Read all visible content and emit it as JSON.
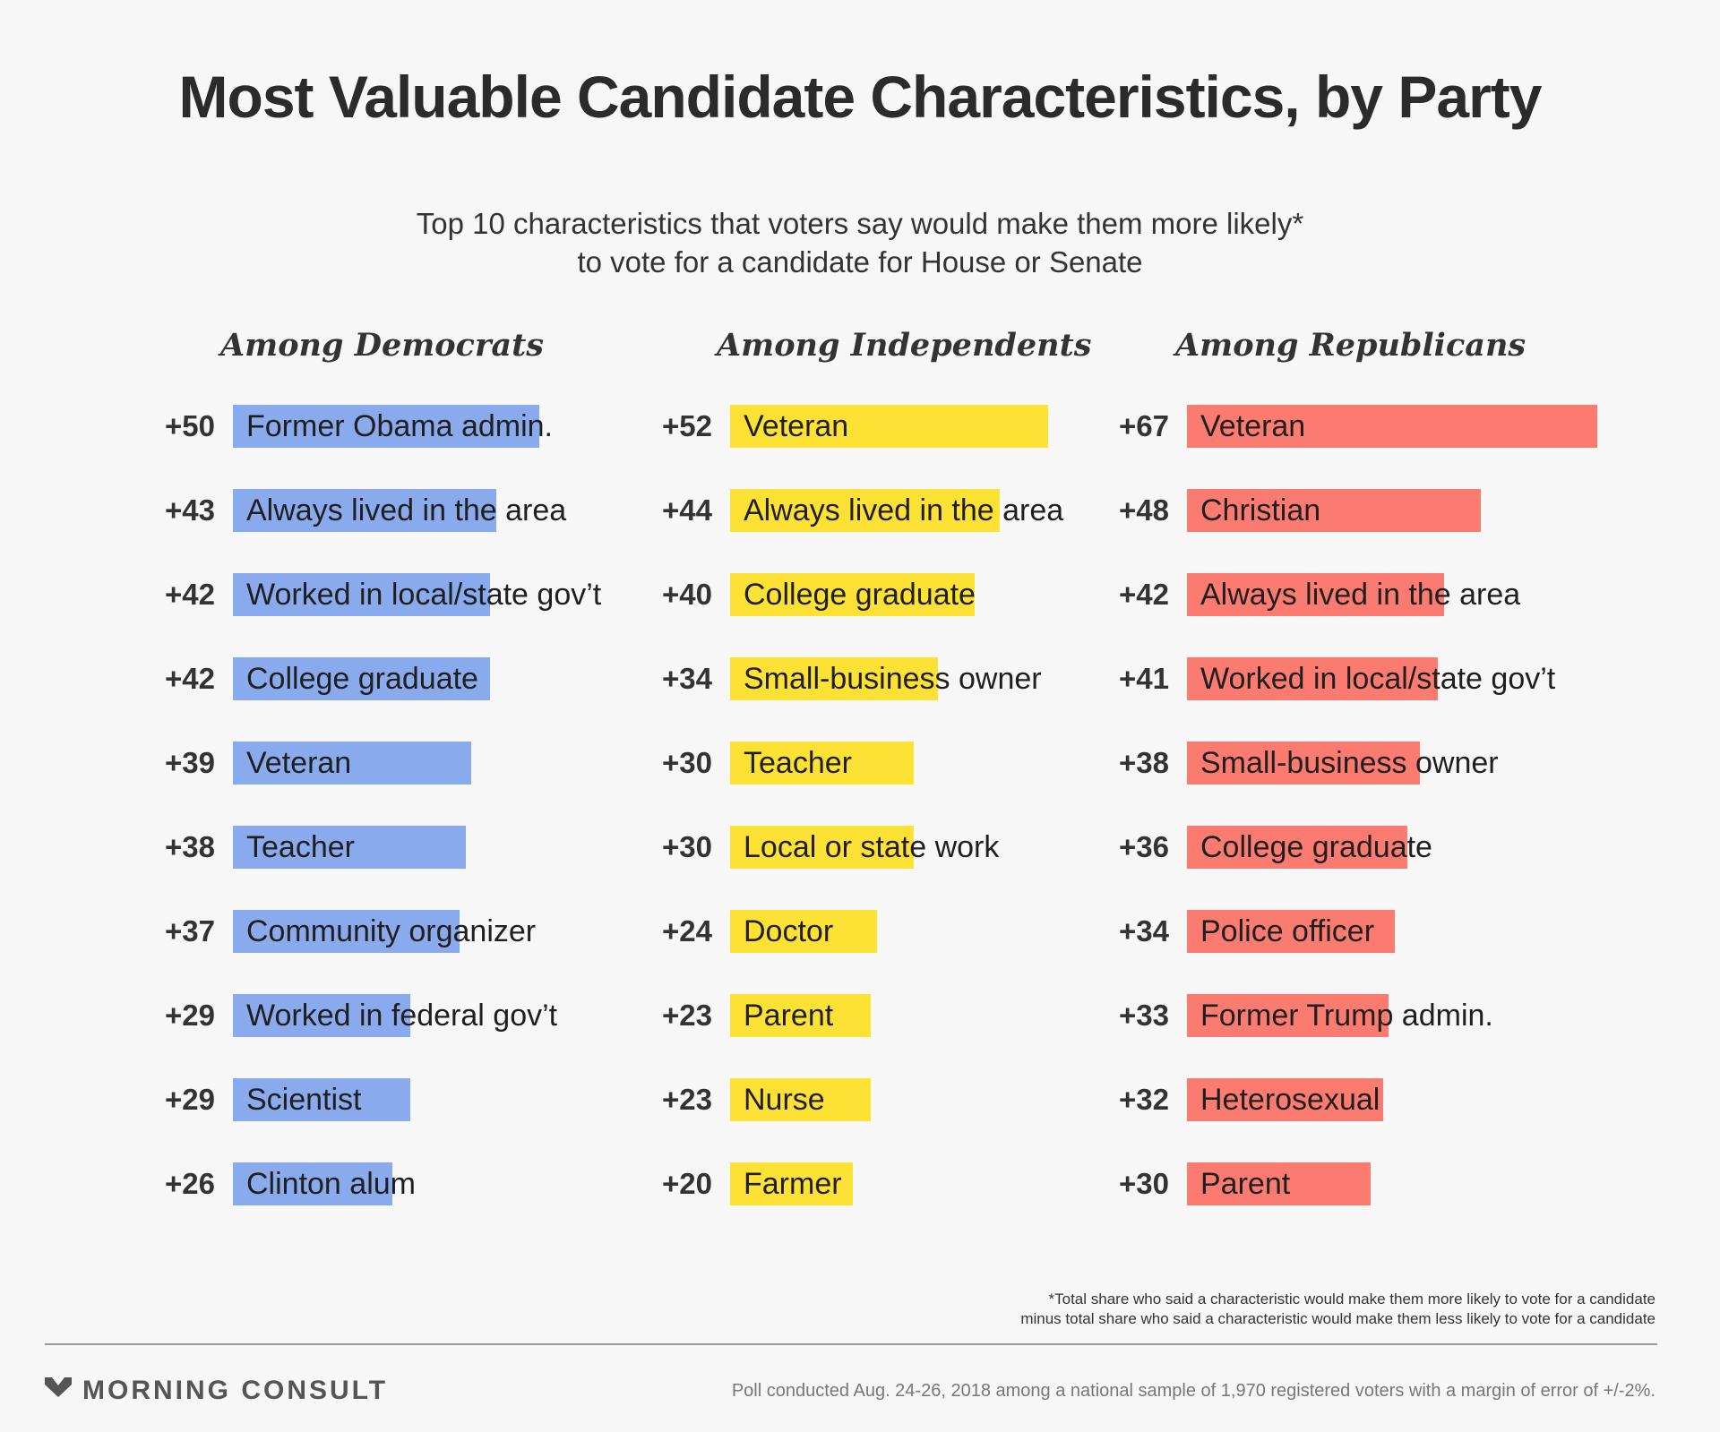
{
  "title": "Most Valuable Candidate Characteristics, by Party",
  "subtitle": [
    "Top 10 characteristics that voters say would make them more likely*",
    "to vote for a candidate for House or Senate"
  ],
  "colors": {
    "democrats": "#8aaaee",
    "independents": "#fde135",
    "republicans": "#fb7b70"
  },
  "chart_data": [
    {
      "type": "bar",
      "title": "Among Democrats",
      "categories": [
        "Former Obama admin.",
        "Always lived in the area",
        "Worked in local/state gov’t",
        "College graduate",
        "Veteran",
        "Teacher",
        "Community organizer",
        "Worked in federal gov’t",
        "Scientist",
        "Clinton alum"
      ],
      "values": [
        50,
        43,
        42,
        42,
        39,
        38,
        37,
        29,
        29,
        26
      ],
      "value_labels": [
        "+50",
        "+43",
        "+42",
        "+42",
        "+39",
        "+38",
        "+37",
        "+29",
        "+29",
        "+26"
      ],
      "orientation": "horizontal",
      "color": "#8aaaee"
    },
    {
      "type": "bar",
      "title": "Among Independents",
      "categories": [
        "Veteran",
        "Always lived in the area",
        "College graduate",
        "Small-business owner",
        "Teacher",
        "Local or state work",
        "Doctor",
        "Parent",
        "Nurse",
        "Farmer"
      ],
      "values": [
        52,
        44,
        40,
        34,
        30,
        30,
        24,
        23,
        23,
        20
      ],
      "value_labels": [
        "+52",
        "+44",
        "+40",
        "+34",
        "+30",
        "+30",
        "+24",
        "+23",
        "+23",
        "+20"
      ],
      "orientation": "horizontal",
      "color": "#fde135"
    },
    {
      "type": "bar",
      "title": "Among Republicans",
      "categories": [
        "Veteran",
        "Christian",
        "Always lived in the area",
        "Worked in local/state gov’t",
        "Small-business owner",
        "College graduate",
        "Police officer",
        "Former Trump admin.",
        "Heterosexual",
        "Parent"
      ],
      "values": [
        67,
        48,
        42,
        41,
        38,
        36,
        34,
        33,
        32,
        30
      ],
      "value_labels": [
        "+67",
        "+48",
        "+42",
        "+41",
        "+38",
        "+36",
        "+34",
        "+33",
        "+32",
        "+30"
      ],
      "orientation": "horizontal",
      "color": "#fb7b70"
    }
  ],
  "footnote": [
    "*Total share who said a characteristic would make them more likely to vote for a candidate",
    "minus total share who said a characteristic would make them less likely to vote for a candidate"
  ],
  "brand": {
    "name": "MORNING CONSULT",
    "icon": "morning-consult-logo-icon"
  },
  "source": "Poll conducted Aug. 24-26, 2018 among a national sample of 1,970 registered voters with a margin of error of +/-2%."
}
